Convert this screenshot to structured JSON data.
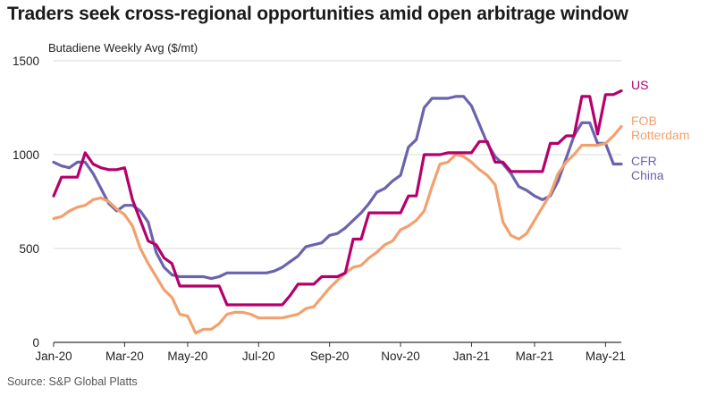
{
  "title": "Traders seek cross-regional opportunities amid open arbitrage window",
  "source": "Source: S&P Global Platts",
  "colors": {
    "US": "#b5006b",
    "FOB Rotterdam": "#f2a06e",
    "CFR China": "#6a63ad",
    "grid": "#d9d9d9",
    "axis": "#333333"
  },
  "chart_data": {
    "type": "line",
    "title": "Traders seek cross-regional opportunities amid open arbitrage window",
    "ylabel": "Butadiene Weekly Avg ($/mt)",
    "xlabel": "",
    "ylim": [
      0,
      1500
    ],
    "yticks": [
      0,
      500,
      1000,
      1500
    ],
    "xlim": [
      0,
      70
    ],
    "xticks": [
      {
        "x": 0,
        "label": "Jan-20"
      },
      {
        "x": 9,
        "label": "Mar-20"
      },
      {
        "x": 17,
        "label": "May-20"
      },
      {
        "x": 26,
        "label": "Jul-20"
      },
      {
        "x": 35,
        "label": "Sep-20"
      },
      {
        "x": 44,
        "label": "Nov-20"
      },
      {
        "x": 53,
        "label": "Jan-21"
      },
      {
        "x": 61,
        "label": "Mar-21"
      },
      {
        "x": 70,
        "label": "May-21"
      }
    ],
    "grid": true,
    "legend_placement": "right, at line ends",
    "series": [
      {
        "name": "US",
        "legend_lines": [
          "US"
        ],
        "values": [
          [
            0,
            780
          ],
          [
            1,
            880
          ],
          [
            2,
            880
          ],
          [
            3,
            880
          ],
          [
            4,
            1010
          ],
          [
            5,
            950
          ],
          [
            6,
            930
          ],
          [
            7,
            920
          ],
          [
            8,
            920
          ],
          [
            9,
            930
          ],
          [
            10,
            760
          ],
          [
            11,
            650
          ],
          [
            12,
            540
          ],
          [
            13,
            520
          ],
          [
            14,
            450
          ],
          [
            15,
            420
          ],
          [
            16,
            300
          ],
          [
            17,
            300
          ],
          [
            18,
            300
          ],
          [
            19,
            300
          ],
          [
            20,
            300
          ],
          [
            21,
            300
          ],
          [
            22,
            200
          ],
          [
            23,
            200
          ],
          [
            24,
            200
          ],
          [
            25,
            200
          ],
          [
            26,
            200
          ],
          [
            27,
            200
          ],
          [
            28,
            200
          ],
          [
            29,
            200
          ],
          [
            30,
            250
          ],
          [
            31,
            310
          ],
          [
            32,
            310
          ],
          [
            33,
            310
          ],
          [
            34,
            350
          ],
          [
            35,
            350
          ],
          [
            36,
            350
          ],
          [
            37,
            370
          ],
          [
            38,
            550
          ],
          [
            39,
            550
          ],
          [
            40,
            690
          ],
          [
            41,
            690
          ],
          [
            42,
            690
          ],
          [
            43,
            690
          ],
          [
            44,
            690
          ],
          [
            45,
            780
          ],
          [
            46,
            780
          ],
          [
            47,
            1000
          ],
          [
            48,
            1000
          ],
          [
            49,
            1000
          ],
          [
            50,
            1010
          ],
          [
            51,
            1010
          ],
          [
            52,
            1010
          ],
          [
            53,
            1010
          ],
          [
            54,
            1070
          ],
          [
            55,
            1070
          ],
          [
            56,
            960
          ],
          [
            57,
            960
          ],
          [
            58,
            910
          ],
          [
            59,
            910
          ],
          [
            60,
            910
          ],
          [
            61,
            910
          ],
          [
            62,
            910
          ],
          [
            63,
            1060
          ],
          [
            64,
            1060
          ],
          [
            65,
            1100
          ],
          [
            66,
            1100
          ],
          [
            67,
            1310
          ],
          [
            68,
            1310
          ],
          [
            69,
            1110
          ],
          [
            70,
            1320
          ],
          [
            71,
            1320
          ],
          [
            72,
            1340
          ]
        ]
      },
      {
        "name": "FOB Rotterdam",
        "legend_lines": [
          "FOB",
          "Rotterdam"
        ],
        "values": [
          [
            0,
            660
          ],
          [
            1,
            670
          ],
          [
            2,
            700
          ],
          [
            3,
            720
          ],
          [
            4,
            730
          ],
          [
            5,
            760
          ],
          [
            6,
            770
          ],
          [
            7,
            750
          ],
          [
            8,
            710
          ],
          [
            9,
            680
          ],
          [
            10,
            620
          ],
          [
            11,
            500
          ],
          [
            12,
            420
          ],
          [
            13,
            350
          ],
          [
            14,
            280
          ],
          [
            15,
            240
          ],
          [
            16,
            150
          ],
          [
            17,
            140
          ],
          [
            18,
            50
          ],
          [
            19,
            70
          ],
          [
            20,
            70
          ],
          [
            21,
            100
          ],
          [
            22,
            150
          ],
          [
            23,
            160
          ],
          [
            24,
            160
          ],
          [
            25,
            150
          ],
          [
            26,
            130
          ],
          [
            27,
            130
          ],
          [
            28,
            130
          ],
          [
            29,
            130
          ],
          [
            30,
            140
          ],
          [
            31,
            150
          ],
          [
            32,
            180
          ],
          [
            33,
            190
          ],
          [
            34,
            240
          ],
          [
            35,
            290
          ],
          [
            36,
            330
          ],
          [
            37,
            370
          ],
          [
            38,
            400
          ],
          [
            39,
            410
          ],
          [
            40,
            450
          ],
          [
            41,
            480
          ],
          [
            42,
            520
          ],
          [
            43,
            540
          ],
          [
            44,
            600
          ],
          [
            45,
            620
          ],
          [
            46,
            650
          ],
          [
            47,
            700
          ],
          [
            48,
            830
          ],
          [
            49,
            950
          ],
          [
            50,
            960
          ],
          [
            51,
            1000
          ],
          [
            52,
            990
          ],
          [
            53,
            960
          ],
          [
            54,
            920
          ],
          [
            55,
            890
          ],
          [
            56,
            840
          ],
          [
            57,
            640
          ],
          [
            58,
            570
          ],
          [
            59,
            550
          ],
          [
            60,
            580
          ],
          [
            61,
            650
          ],
          [
            62,
            720
          ],
          [
            63,
            790
          ],
          [
            64,
            900
          ],
          [
            65,
            960
          ],
          [
            66,
            1000
          ],
          [
            67,
            1050
          ],
          [
            68,
            1050
          ],
          [
            69,
            1050
          ],
          [
            70,
            1060
          ],
          [
            71,
            1100
          ],
          [
            72,
            1150
          ]
        ]
      },
      {
        "name": "CFR China",
        "legend_lines": [
          "CFR",
          "China"
        ],
        "values": [
          [
            0,
            960
          ],
          [
            1,
            940
          ],
          [
            2,
            930
          ],
          [
            3,
            960
          ],
          [
            4,
            960
          ],
          [
            5,
            900
          ],
          [
            6,
            820
          ],
          [
            7,
            740
          ],
          [
            8,
            700
          ],
          [
            9,
            730
          ],
          [
            10,
            730
          ],
          [
            11,
            700
          ],
          [
            12,
            640
          ],
          [
            13,
            480
          ],
          [
            14,
            400
          ],
          [
            15,
            360
          ],
          [
            16,
            350
          ],
          [
            17,
            350
          ],
          [
            18,
            350
          ],
          [
            19,
            350
          ],
          [
            20,
            340
          ],
          [
            21,
            350
          ],
          [
            22,
            370
          ],
          [
            23,
            370
          ],
          [
            24,
            370
          ],
          [
            25,
            370
          ],
          [
            26,
            370
          ],
          [
            27,
            370
          ],
          [
            28,
            380
          ],
          [
            29,
            400
          ],
          [
            30,
            430
          ],
          [
            31,
            460
          ],
          [
            32,
            510
          ],
          [
            33,
            520
          ],
          [
            34,
            530
          ],
          [
            35,
            570
          ],
          [
            36,
            580
          ],
          [
            37,
            610
          ],
          [
            38,
            650
          ],
          [
            39,
            690
          ],
          [
            40,
            740
          ],
          [
            41,
            800
          ],
          [
            42,
            820
          ],
          [
            43,
            860
          ],
          [
            44,
            890
          ],
          [
            45,
            1040
          ],
          [
            46,
            1080
          ],
          [
            47,
            1250
          ],
          [
            48,
            1300
          ],
          [
            49,
            1300
          ],
          [
            50,
            1300
          ],
          [
            51,
            1310
          ],
          [
            52,
            1310
          ],
          [
            53,
            1260
          ],
          [
            54,
            1160
          ],
          [
            55,
            1060
          ],
          [
            56,
            990
          ],
          [
            57,
            950
          ],
          [
            58,
            900
          ],
          [
            59,
            830
          ],
          [
            60,
            810
          ],
          [
            61,
            780
          ],
          [
            62,
            760
          ],
          [
            63,
            780
          ],
          [
            64,
            860
          ],
          [
            65,
            980
          ],
          [
            66,
            1100
          ],
          [
            67,
            1170
          ],
          [
            68,
            1170
          ],
          [
            69,
            1060
          ],
          [
            70,
            1060
          ],
          [
            71,
            950
          ],
          [
            72,
            950
          ]
        ]
      }
    ]
  }
}
